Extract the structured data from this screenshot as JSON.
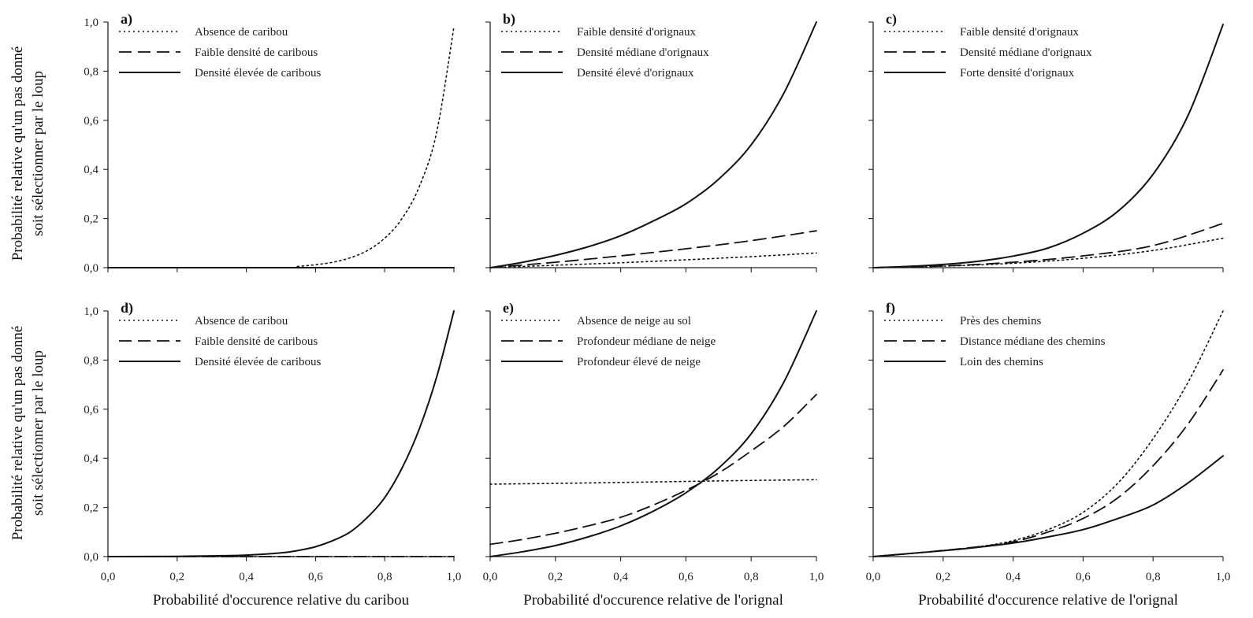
{
  "y_axis_title_line1": "Probabilité relative qu'un pas donné",
  "y_axis_title_line2": "soit sélectionner par le loup",
  "chart_data": [
    {
      "type": "line",
      "panel": "a)",
      "xlim": [
        0,
        1
      ],
      "ylim": [
        0,
        1
      ],
      "xticks": [],
      "yticks": [
        "0.0",
        "0.2",
        "0.4",
        "0.6",
        "0.8",
        "1.0"
      ],
      "xlabel": "",
      "legend_placement": "top-left",
      "series": [
        {
          "name": "Absence de caribou",
          "style": "dotted",
          "x": [
            0,
            0.5,
            0.55,
            0.6,
            0.65,
            0.7,
            0.75,
            0.8,
            0.85,
            0.9,
            0.95,
            1.0
          ],
          "y": [
            0,
            0.0,
            0.005,
            0.012,
            0.022,
            0.04,
            0.07,
            0.12,
            0.2,
            0.33,
            0.55,
            0.98
          ]
        },
        {
          "name": "Faible densité de caribous",
          "style": "dashed",
          "x": [
            0,
            1
          ],
          "y": [
            0.0,
            0.0
          ]
        },
        {
          "name": "Densité élevée de caribous",
          "style": "solid",
          "x": [
            0,
            1
          ],
          "y": [
            0.0,
            0.0
          ]
        }
      ]
    },
    {
      "type": "line",
      "panel": "b)",
      "xlim": [
        0,
        1
      ],
      "ylim": [
        0,
        1
      ],
      "xticks": [],
      "yticks": [],
      "xlabel": "",
      "legend_placement": "top-left",
      "series": [
        {
          "name": "Faible densité d'orignaux",
          "style": "dotted",
          "x": [
            0,
            0.2,
            0.4,
            0.6,
            0.8,
            1.0
          ],
          "y": [
            0,
            0.01,
            0.02,
            0.032,
            0.045,
            0.06
          ]
        },
        {
          "name": "Densité médiane d'orignaux",
          "style": "dashed",
          "x": [
            0,
            0.2,
            0.4,
            0.6,
            0.8,
            1.0
          ],
          "y": [
            0,
            0.022,
            0.048,
            0.077,
            0.11,
            0.15
          ]
        },
        {
          "name": "Densité élevé d'orignaux",
          "style": "solid",
          "x": [
            0,
            0.1,
            0.2,
            0.3,
            0.4,
            0.5,
            0.6,
            0.7,
            0.8,
            0.9,
            1.0
          ],
          "y": [
            0,
            0.022,
            0.05,
            0.085,
            0.13,
            0.19,
            0.26,
            0.36,
            0.5,
            0.71,
            1.0
          ]
        }
      ]
    },
    {
      "type": "line",
      "panel": "c)",
      "xlim": [
        0,
        1
      ],
      "ylim": [
        0,
        1
      ],
      "xticks": [],
      "yticks": [],
      "xlabel": "",
      "legend_placement": "top-left",
      "series": [
        {
          "name": "Faible densité d'orignaux",
          "style": "dotted",
          "x": [
            0,
            0.2,
            0.4,
            0.6,
            0.8,
            1.0
          ],
          "y": [
            0,
            0.006,
            0.018,
            0.038,
            0.07,
            0.12
          ]
        },
        {
          "name": "Densité médiane d'orignaux",
          "style": "dashed",
          "x": [
            0,
            0.2,
            0.4,
            0.6,
            0.8,
            1.0
          ],
          "y": [
            0,
            0.007,
            0.022,
            0.048,
            0.09,
            0.18
          ]
        },
        {
          "name": "Forte densité d'orignaux",
          "style": "solid",
          "x": [
            0,
            0.1,
            0.2,
            0.3,
            0.4,
            0.5,
            0.6,
            0.7,
            0.8,
            0.9,
            1.0
          ],
          "y": [
            0,
            0.005,
            0.013,
            0.026,
            0.047,
            0.08,
            0.14,
            0.23,
            0.38,
            0.62,
            0.99
          ]
        }
      ]
    },
    {
      "type": "line",
      "panel": "d)",
      "xlim": [
        0,
        1
      ],
      "ylim": [
        0,
        1
      ],
      "xticks": [
        "0.0",
        "0.2",
        "0.4",
        "0.6",
        "0.8",
        "1.0"
      ],
      "yticks": [
        "0.0",
        "0.2",
        "0.4",
        "0.6",
        "0.8",
        "1.0"
      ],
      "xlabel": "Probabilité d'occurence relative du caribou",
      "legend_placement": "top-left",
      "series": [
        {
          "name": "Absence de caribou",
          "style": "dotted",
          "x": [
            0,
            1
          ],
          "y": [
            0.0,
            0.0
          ]
        },
        {
          "name": "Faible densité de caribous",
          "style": "dashed",
          "x": [
            0,
            1
          ],
          "y": [
            0.0,
            0.0
          ]
        },
        {
          "name": "Densité élevée de caribous",
          "style": "solid",
          "x": [
            0,
            0.2,
            0.3,
            0.4,
            0.5,
            0.55,
            0.6,
            0.65,
            0.7,
            0.75,
            0.8,
            0.85,
            0.9,
            0.95,
            1.0
          ],
          "y": [
            0,
            0.001,
            0.003,
            0.006,
            0.015,
            0.025,
            0.04,
            0.065,
            0.1,
            0.16,
            0.24,
            0.36,
            0.52,
            0.73,
            1.0
          ]
        }
      ]
    },
    {
      "type": "line",
      "panel": "e)",
      "xlim": [
        0,
        1
      ],
      "ylim": [
        0,
        1
      ],
      "xticks": [
        "0.0",
        "0.2",
        "0.4",
        "0.6",
        "0.8",
        "1.0"
      ],
      "yticks": [],
      "xlabel": "Probabilité d'occurence relative de l'orignal",
      "legend_placement": "top-left",
      "series": [
        {
          "name": "Absence de neige au sol",
          "style": "dotted",
          "x": [
            0,
            0.2,
            0.4,
            0.6,
            0.8,
            1.0
          ],
          "y": [
            0.295,
            0.298,
            0.302,
            0.306,
            0.31,
            0.313
          ]
        },
        {
          "name": "Profondeur médiane de neige",
          "style": "dashed",
          "x": [
            0,
            0.1,
            0.2,
            0.3,
            0.4,
            0.5,
            0.6,
            0.7,
            0.8,
            0.9,
            1.0
          ],
          "y": [
            0.05,
            0.07,
            0.095,
            0.125,
            0.16,
            0.21,
            0.27,
            0.34,
            0.43,
            0.53,
            0.66
          ]
        },
        {
          "name": "Profondeur élevé de neige",
          "style": "solid",
          "x": [
            0,
            0.1,
            0.2,
            0.3,
            0.4,
            0.5,
            0.6,
            0.7,
            0.8,
            0.9,
            1.0
          ],
          "y": [
            0,
            0.02,
            0.045,
            0.08,
            0.125,
            0.185,
            0.26,
            0.36,
            0.5,
            0.71,
            1.0
          ]
        }
      ]
    },
    {
      "type": "line",
      "panel": "f)",
      "xlim": [
        0,
        1
      ],
      "ylim": [
        0,
        1
      ],
      "xticks": [
        "0.0",
        "0.2",
        "0.4",
        "0.6",
        "0.8",
        "1.0"
      ],
      "yticks": [],
      "xlabel": "Probabilité d'occurence relative de l'orignal",
      "legend_placement": "top-left",
      "series": [
        {
          "name": "Près des chemins",
          "style": "dotted",
          "x": [
            0,
            0.1,
            0.2,
            0.3,
            0.4,
            0.5,
            0.6,
            0.7,
            0.8,
            0.9,
            1.0
          ],
          "y": [
            0,
            0.012,
            0.025,
            0.04,
            0.065,
            0.11,
            0.18,
            0.3,
            0.48,
            0.71,
            1.0
          ]
        },
        {
          "name": "Distance médiane des chemins",
          "style": "dashed",
          "x": [
            0,
            0.1,
            0.2,
            0.3,
            0.4,
            0.5,
            0.6,
            0.7,
            0.8,
            0.9,
            1.0
          ],
          "y": [
            0,
            0.012,
            0.025,
            0.04,
            0.06,
            0.1,
            0.155,
            0.24,
            0.37,
            0.54,
            0.76
          ]
        },
        {
          "name": "Loin des chemins",
          "style": "solid",
          "x": [
            0,
            0.1,
            0.2,
            0.3,
            0.4,
            0.5,
            0.6,
            0.7,
            0.8,
            0.9,
            1.0
          ],
          "y": [
            0,
            0.012,
            0.024,
            0.038,
            0.055,
            0.08,
            0.11,
            0.155,
            0.21,
            0.3,
            0.41
          ]
        }
      ]
    }
  ]
}
